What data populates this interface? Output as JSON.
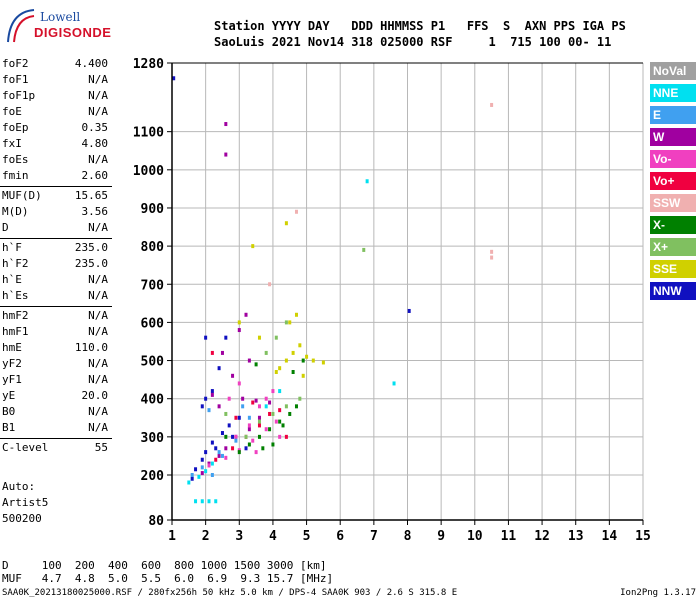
{
  "logo": {
    "line1": "Lowell",
    "line2": "DIGISONDE"
  },
  "header": {
    "line1": "Station YYYY DAY   DDD HHMMSS P1   FFS  S  AXN PPS IGA PS",
    "line2": "SaoLuis 2021 Nov14 318 025000 RSF     1  715 100 00- 11"
  },
  "params": [
    {
      "k": "foF2",
      "v": "4.400"
    },
    {
      "k": "foF1",
      "v": "N/A"
    },
    {
      "k": "foF1p",
      "v": "N/A"
    },
    {
      "k": "foE",
      "v": "N/A"
    },
    {
      "k": "foEp",
      "v": "0.35"
    },
    {
      "k": "fxI",
      "v": "4.80"
    },
    {
      "k": "foEs",
      "v": "N/A"
    },
    {
      "k": "fmin",
      "v": "2.60"
    },
    {
      "k": "MUF(D)",
      "v": "15.65"
    },
    {
      "k": "M(D)",
      "v": "3.56"
    },
    {
      "k": "D",
      "v": "N/A"
    },
    {
      "k": "h`F",
      "v": "235.0"
    },
    {
      "k": "h`F2",
      "v": "235.0"
    },
    {
      "k": "h`E",
      "v": "N/A"
    },
    {
      "k": "h`Es",
      "v": "N/A"
    },
    {
      "k": "hmF2",
      "v": "N/A"
    },
    {
      "k": "hmF1",
      "v": "N/A"
    },
    {
      "k": "hmE",
      "v": "110.0"
    },
    {
      "k": "yF2",
      "v": "N/A"
    },
    {
      "k": "yF1",
      "v": "N/A"
    },
    {
      "k": "yE",
      "v": "20.0"
    },
    {
      "k": "B0",
      "v": "N/A"
    },
    {
      "k": "B1",
      "v": "N/A"
    },
    {
      "k": "C-level",
      "v": "55"
    }
  ],
  "auto": {
    "l1": "Auto:",
    "l2": "Artist5",
    "l3": "500200"
  },
  "muf_table": {
    "d_row": "D     100  200  400  600  800 1000 1500 3000 [km]",
    "muf_row": "MUF   4.7  4.8  5.0  5.5  6.0  6.9  9.3 15.7 [MHz]"
  },
  "footer": "SAA0K_20213180025000.RSF / 280fx256h 50 kHz 5.0 km / DPS-4 SAA0K 903 / 2.6 S 315.8 E",
  "version": "Ion2Png 1.3.17",
  "legend": [
    {
      "label": "NoVal",
      "bg": "#a0a0a0",
      "fg": "#ffffff"
    },
    {
      "label": "NNE",
      "bg": "#00e0f0",
      "fg": "#ffffff"
    },
    {
      "label": "E",
      "bg": "#40a0f0",
      "fg": "#ffffff"
    },
    {
      "label": "W",
      "bg": "#a000a0",
      "fg": "#ffffff"
    },
    {
      "label": "Vo-",
      "bg": "#f040c0",
      "fg": "#ffffff"
    },
    {
      "label": "Vo+",
      "bg": "#f00040",
      "fg": "#ffffff"
    },
    {
      "label": "SSW",
      "bg": "#f0b0b0",
      "fg": "#ffffff"
    },
    {
      "label": "X-",
      "bg": "#008000",
      "fg": "#ffffff"
    },
    {
      "label": "X+",
      "bg": "#80c060",
      "fg": "#ffffff"
    },
    {
      "label": "SSE",
      "bg": "#d0d000",
      "fg": "#ffffff"
    },
    {
      "label": "NNW",
      "bg": "#1010c0",
      "fg": "#ffffff"
    }
  ],
  "chart_data": {
    "type": "scatter",
    "xlabel": "",
    "ylabel": "",
    "xlim": [
      1,
      15
    ],
    "ylim": [
      80,
      1280
    ],
    "x_ticks": [
      "1",
      "2",
      "3",
      "4",
      "5",
      "6",
      "7",
      "8",
      "9",
      "10",
      "11",
      "12",
      "13",
      "14",
      "15"
    ],
    "y_ticks": [
      "80",
      "200",
      "300",
      "400",
      "500",
      "600",
      "700",
      "800",
      "900",
      "1000",
      "1100",
      "1280"
    ],
    "grid": true,
    "axis_lines": [
      1,
      1280
    ],
    "series": [
      {
        "color": "#1010c0",
        "points": [
          [
            1.05,
            1240
          ],
          [
            1.6,
            190
          ],
          [
            1.7,
            215
          ],
          [
            1.9,
            240
          ],
          [
            2.0,
            260
          ],
          [
            2.2,
            285
          ],
          [
            2.5,
            310
          ],
          [
            2.7,
            330
          ],
          [
            3.0,
            350
          ],
          [
            2.0,
            400
          ],
          [
            2.2,
            420
          ],
          [
            2.6,
            560
          ],
          [
            1.9,
            380
          ],
          [
            2.3,
            270
          ],
          [
            3.2,
            270
          ],
          [
            2.8,
            300
          ],
          [
            8.05,
            630
          ],
          [
            2.0,
            560
          ],
          [
            2.4,
            480
          ]
        ]
      },
      {
        "color": "#a000a0",
        "points": [
          [
            1.9,
            205
          ],
          [
            2.1,
            230
          ],
          [
            2.4,
            250
          ],
          [
            2.6,
            270
          ],
          [
            2.9,
            300
          ],
          [
            3.3,
            320
          ],
          [
            3.6,
            350
          ],
          [
            2.6,
            1120
          ],
          [
            2.6,
            1040
          ],
          [
            3.1,
            400
          ],
          [
            3.5,
            395
          ],
          [
            3.9,
            390
          ],
          [
            2.4,
            380
          ],
          [
            2.2,
            410
          ],
          [
            3.0,
            580
          ],
          [
            3.2,
            620
          ],
          [
            2.8,
            460
          ],
          [
            3.3,
            500
          ],
          [
            2.5,
            520
          ]
        ]
      },
      {
        "color": "#f040c0",
        "points": [
          [
            2.1,
            225
          ],
          [
            2.6,
            245
          ],
          [
            3.0,
            265
          ],
          [
            3.4,
            290
          ],
          [
            3.8,
            320
          ],
          [
            4.1,
            340
          ],
          [
            3.6,
            380
          ],
          [
            3.8,
            400
          ],
          [
            4.0,
            420
          ],
          [
            2.9,
            300
          ],
          [
            3.3,
            330
          ],
          [
            3.0,
            440
          ],
          [
            4.2,
            300
          ],
          [
            3.5,
            260
          ],
          [
            2.7,
            400
          ]
        ]
      },
      {
        "color": "#f00040",
        "points": [
          [
            2.3,
            240
          ],
          [
            2.8,
            270
          ],
          [
            3.2,
            300
          ],
          [
            3.6,
            330
          ],
          [
            3.9,
            360
          ],
          [
            4.2,
            370
          ],
          [
            3.4,
            390
          ],
          [
            4.4,
            300
          ],
          [
            2.2,
            520
          ],
          [
            2.9,
            350
          ]
        ]
      },
      {
        "color": "#008000",
        "points": [
          [
            3.0,
            260
          ],
          [
            3.3,
            280
          ],
          [
            3.6,
            300
          ],
          [
            3.9,
            320
          ],
          [
            4.2,
            340
          ],
          [
            4.5,
            360
          ],
          [
            4.0,
            280
          ],
          [
            4.7,
            380
          ],
          [
            3.7,
            270
          ],
          [
            4.6,
            470
          ],
          [
            4.9,
            500
          ],
          [
            3.5,
            490
          ],
          [
            4.3,
            330
          ],
          [
            2.6,
            300
          ]
        ]
      },
      {
        "color": "#80c060",
        "points": [
          [
            3.2,
            300
          ],
          [
            3.6,
            340
          ],
          [
            4.0,
            360
          ],
          [
            4.4,
            380
          ],
          [
            4.8,
            400
          ],
          [
            3.8,
            520
          ],
          [
            4.1,
            560
          ],
          [
            4.4,
            600
          ],
          [
            6.7,
            790
          ],
          [
            2.6,
            360
          ]
        ]
      },
      {
        "color": "#d0d000",
        "points": [
          [
            4.2,
            480
          ],
          [
            4.4,
            500
          ],
          [
            4.6,
            520
          ],
          [
            4.8,
            540
          ],
          [
            5.0,
            510
          ],
          [
            5.2,
            500
          ],
          [
            5.5,
            495
          ],
          [
            4.5,
            600
          ],
          [
            4.7,
            620
          ],
          [
            4.1,
            470
          ],
          [
            3.4,
            800
          ],
          [
            4.4,
            860
          ],
          [
            3.6,
            560
          ],
          [
            4.9,
            460
          ],
          [
            3.0,
            600
          ]
        ]
      },
      {
        "color": "#f0b0b0",
        "points": [
          [
            10.5,
            1170
          ],
          [
            10.5,
            785
          ],
          [
            10.5,
            770
          ],
          [
            4.7,
            890
          ],
          [
            3.9,
            700
          ]
        ]
      },
      {
        "color": "#00e0f0",
        "points": [
          [
            1.5,
            180
          ],
          [
            1.8,
            195
          ],
          [
            2.0,
            210
          ],
          [
            2.2,
            230
          ],
          [
            1.7,
            130
          ],
          [
            1.9,
            130
          ],
          [
            2.1,
            130
          ],
          [
            2.3,
            130
          ],
          [
            6.8,
            970
          ],
          [
            7.6,
            440
          ],
          [
            3.8,
            380
          ],
          [
            4.2,
            420
          ]
        ]
      },
      {
        "color": "#40a0f0",
        "points": [
          [
            1.6,
            200
          ],
          [
            1.9,
            220
          ],
          [
            2.2,
            200
          ],
          [
            2.5,
            250
          ],
          [
            2.9,
            290
          ],
          [
            3.3,
            350
          ],
          [
            2.1,
            370
          ],
          [
            2.4,
            260
          ],
          [
            3.1,
            380
          ]
        ]
      }
    ]
  }
}
